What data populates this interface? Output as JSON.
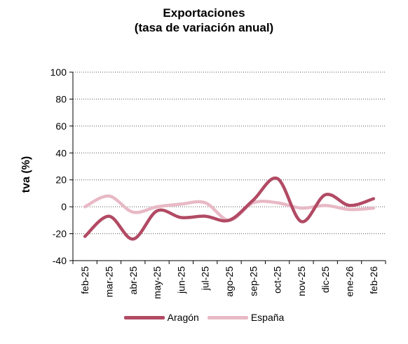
{
  "chart_data": {
    "type": "line",
    "title": "Exportaciones",
    "subtitle": "(tasa de variación anual)",
    "ylabel": "tva (%)",
    "xlabel": "",
    "ylim": [
      -40,
      100
    ],
    "yticks": [
      -40,
      -20,
      0,
      20,
      40,
      60,
      80,
      100
    ],
    "grid": "horizontal-dotted",
    "legend": "bottom",
    "categories": [
      "feb-25",
      "mar-25",
      "abr-25",
      "may-25",
      "jun-25",
      "jul-25",
      "ago-25",
      "sep-25",
      "oct-25",
      "nov-25",
      "dic-25",
      "ene-26",
      "feb-26"
    ],
    "series": [
      {
        "name": "Aragón",
        "color": "#b24a64",
        "values": [
          -22,
          -7,
          -24,
          -3,
          -8,
          -7,
          -10,
          5,
          21,
          -11,
          9,
          1,
          6
        ]
      },
      {
        "name": "España",
        "color": "#e8b9c6",
        "values": [
          0,
          8,
          -4,
          0,
          2,
          3,
          -10,
          3,
          3,
          -1,
          1,
          -2,
          -1
        ]
      }
    ]
  }
}
